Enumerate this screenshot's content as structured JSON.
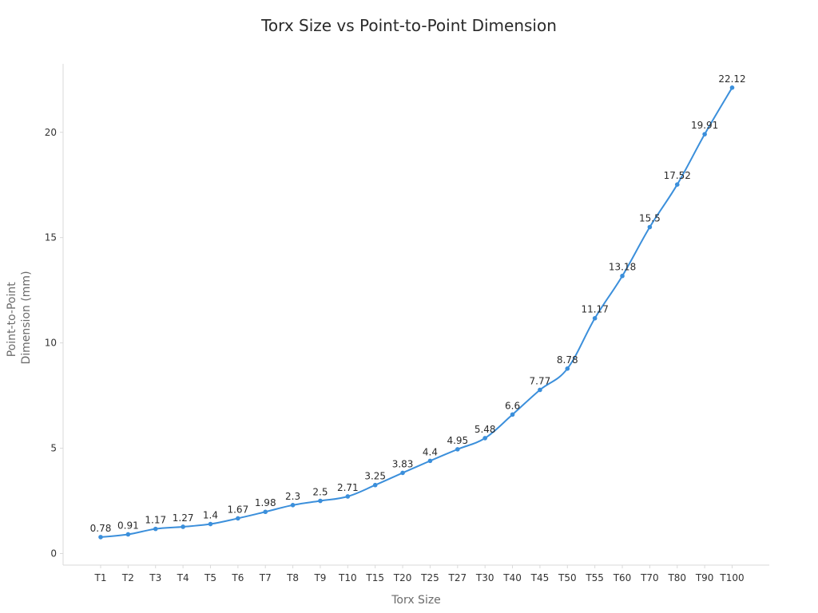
{
  "chart_data": {
    "type": "line",
    "title": "Torx Size vs Point-to-Point Dimension",
    "xlabel": "Torx Size",
    "ylabel": "Point-to-Point Dimension (mm)",
    "ylabel_lines": [
      "Point-to-Point",
      "Dimension (mm)"
    ],
    "categories": [
      "T1",
      "T2",
      "T3",
      "T4",
      "T5",
      "T6",
      "T7",
      "T8",
      "T9",
      "T10",
      "T15",
      "T20",
      "T25",
      "T27",
      "T30",
      "T40",
      "T45",
      "T50",
      "T55",
      "T60",
      "T70",
      "T80",
      "T90",
      "T100"
    ],
    "values": [
      0.78,
      0.91,
      1.17,
      1.27,
      1.4,
      1.67,
      1.98,
      2.3,
      2.5,
      2.71,
      3.25,
      3.83,
      4.4,
      4.95,
      5.48,
      6.6,
      7.77,
      8.78,
      11.17,
      13.18,
      15.5,
      17.52,
      19.91,
      22.12
    ],
    "yticks": [
      0,
      5,
      10,
      15,
      20
    ],
    "ylim": [
      -0.55,
      23.25
    ],
    "grid": false,
    "legend": "none",
    "line_color": "#3b8fdb",
    "axis_color": "#d9d9d9"
  }
}
